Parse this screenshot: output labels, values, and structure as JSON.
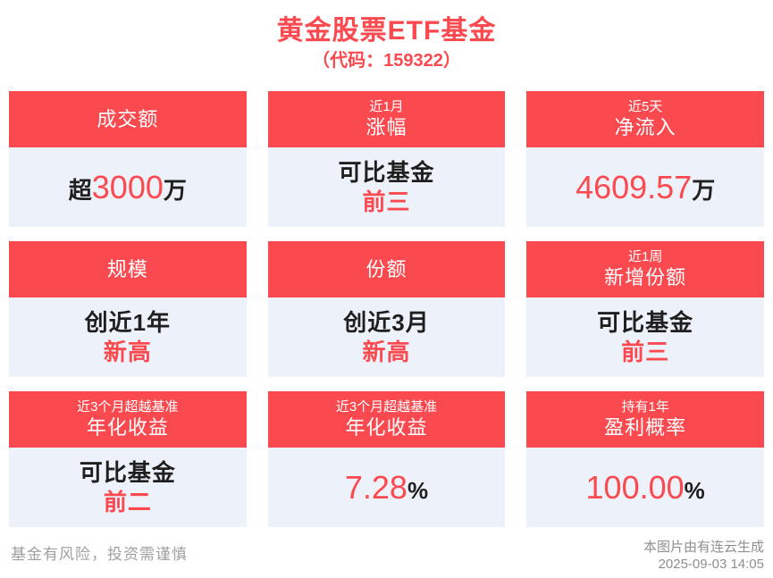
{
  "title": "黄金股票ETF基金",
  "subtitle": "（代码：159322）",
  "colors": {
    "accent_red": "#FA4A4F",
    "card_body_bg": "#EDF1F9",
    "dark_text": "#1F1F1F",
    "footer_gray": "#A0A0A0"
  },
  "cards": [
    {
      "header": {
        "main": "成交额"
      },
      "segments": [
        {
          "text": "超"
        },
        {
          "text": "3000"
        },
        {
          "text": "万"
        }
      ]
    },
    {
      "header": {
        "small": "近1月",
        "main": "涨幅"
      },
      "lines": [
        {
          "text": "可比基金"
        },
        {
          "text": "前三"
        }
      ]
    },
    {
      "header": {
        "small": "近5天",
        "main": "净流入"
      },
      "segments": [
        {
          "text": "4609.57"
        },
        {
          "text": "万"
        }
      ]
    },
    {
      "header": {
        "main": "规模"
      },
      "lines": [
        {
          "text": "创近1年"
        },
        {
          "text": "新高"
        }
      ]
    },
    {
      "header": {
        "main": "份额"
      },
      "lines": [
        {
          "text": "创近3月"
        },
        {
          "text": "新高"
        }
      ]
    },
    {
      "header": {
        "small": "近1周",
        "main": "新增份额"
      },
      "lines": [
        {
          "text": "可比基金"
        },
        {
          "text": "前三"
        }
      ]
    },
    {
      "header": {
        "small": "近3个月超越基准",
        "main": "年化收益"
      },
      "lines": [
        {
          "text": "可比基金"
        },
        {
          "text": "前二"
        }
      ]
    },
    {
      "header": {
        "small": "近3个月超越基准",
        "main": "年化收益"
      },
      "segments": [
        {
          "text": "7.28"
        },
        {
          "text": "%"
        }
      ]
    },
    {
      "header": {
        "small": "持有1年",
        "main": "盈利概率"
      },
      "segments": [
        {
          "text": "100.00"
        },
        {
          "text": "%"
        }
      ]
    }
  ],
  "footer": {
    "disclaimer": "基金有风险，投资需谨慎",
    "credit": "本图片由有连云生成",
    "timestamp": "2025-09-03 14:05"
  }
}
